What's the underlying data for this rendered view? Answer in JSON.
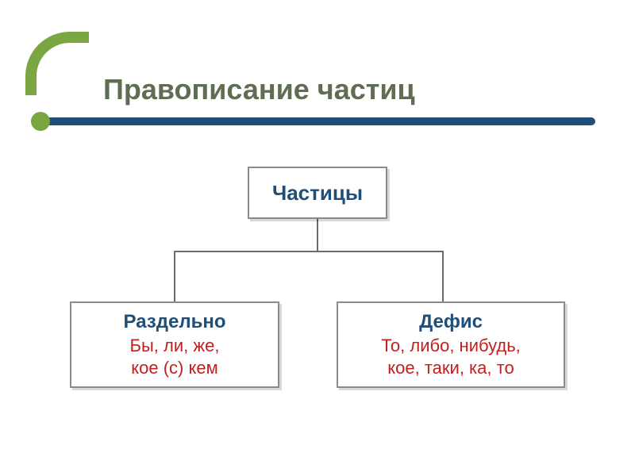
{
  "title": {
    "text": "Правописание частиц",
    "color": "#5f6d52"
  },
  "frame": {
    "corner_color": "#7aa642",
    "bar_color": "#1f4e79",
    "cap_color": "#7aa642"
  },
  "root": {
    "label": "Частицы",
    "label_color": "#1f4e79"
  },
  "left": {
    "heading": "Раздельно",
    "heading_color": "#1f4e79",
    "body": "Бы, ли, же,\nкое (с) кем",
    "body_color": "#c21f1f"
  },
  "right": {
    "heading": "Дефис",
    "heading_color": "#1f4e79",
    "body": "То, либо, нибудь,\nкое, таки, ка, то",
    "body_color": "#c21f1f"
  }
}
